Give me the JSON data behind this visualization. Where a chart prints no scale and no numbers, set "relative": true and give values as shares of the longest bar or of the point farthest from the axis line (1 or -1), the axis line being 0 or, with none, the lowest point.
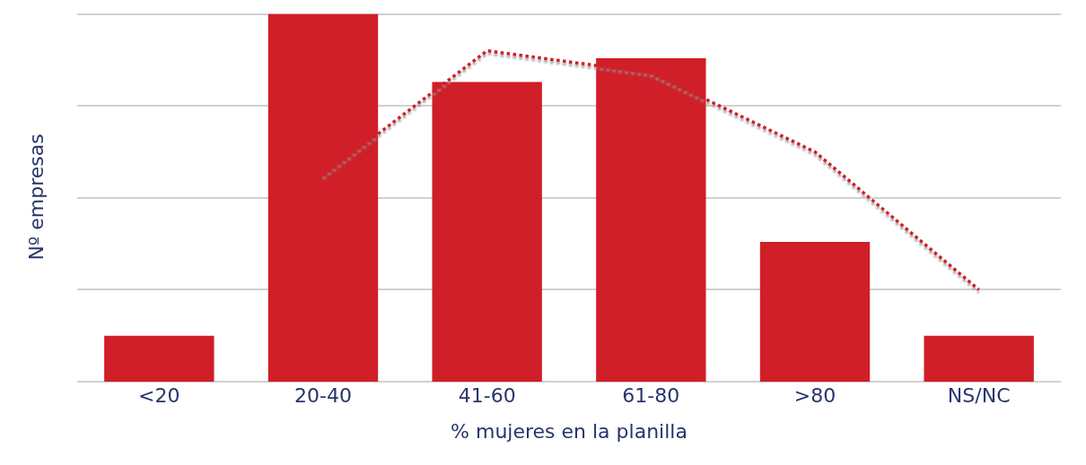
{
  "chart_data": {
    "type": "bar",
    "xlabel": "% mujeres en la planilla",
    "ylabel": "Nº empresas",
    "categories": [
      "<20",
      "20-40",
      "41-60",
      "61-80",
      ">80",
      "NS/NC"
    ],
    "relative": true,
    "grid": "y",
    "legend": false,
    "series": [
      {
        "color": "#d01f28",
        "values": [
          0.125,
          1,
          0.815,
          0.88,
          0.38,
          0.125
        ]
      },
      {
        "type": "line",
        "color": "#d01f28",
        "line_style": "dotted",
        "marker": "none",
        "values": [
          null,
          0.56,
          0.9,
          0.84,
          0.625,
          0.25
        ]
      }
    ]
  }
}
